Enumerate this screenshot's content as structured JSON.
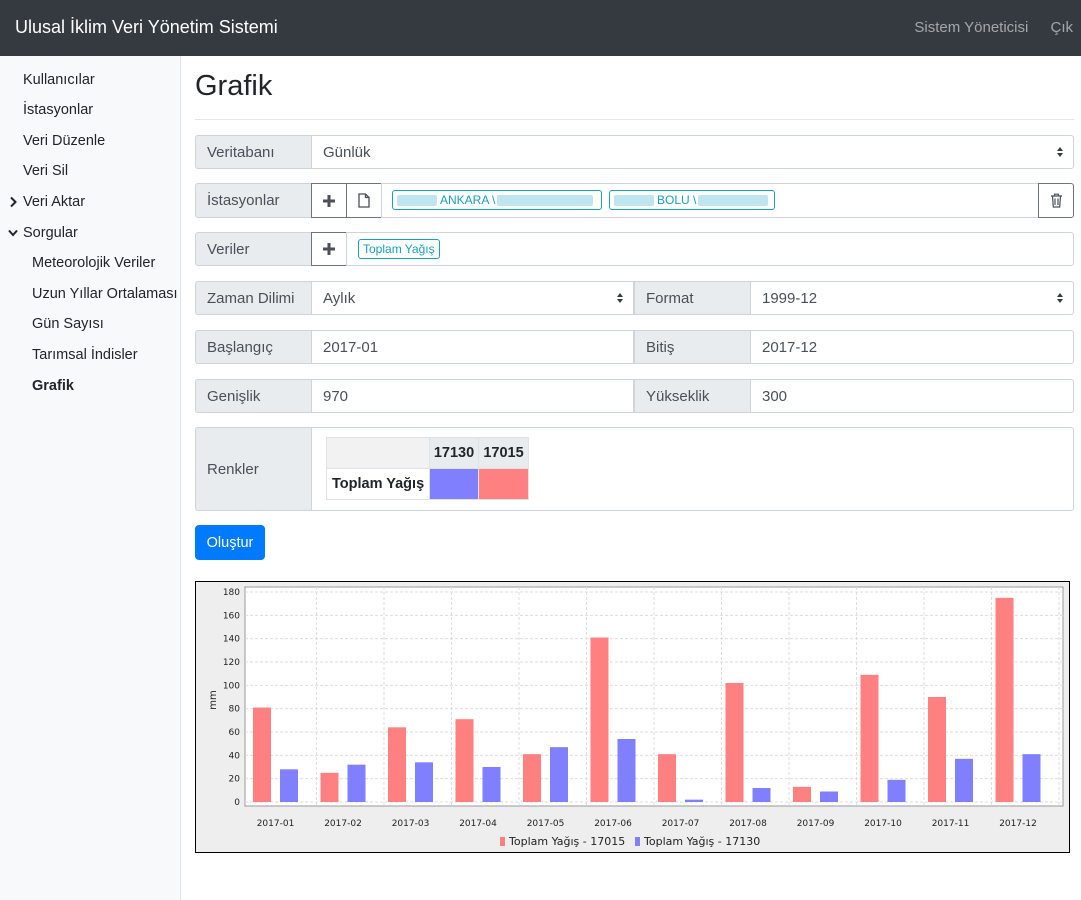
{
  "app": {
    "title": "Ulusal İklim Veri Yönetim Sistemi"
  },
  "topnav": {
    "user": "Sistem Yöneticisi",
    "logout": "Çık"
  },
  "sidebar": {
    "items": [
      "Kullanıcılar",
      "İstasyonlar",
      "Veri Düzenle",
      "Veri Sil"
    ],
    "veri_aktar": "Veri Aktar",
    "sorgular": "Sorgular",
    "sub_items": [
      "Meteorolojik Veriler",
      "Uzun Yıllar Ortalaması",
      "Gün Sayısı",
      "Tarımsal İndisler",
      "Grafik"
    ]
  },
  "page": {
    "title": "Grafik"
  },
  "form": {
    "veritabani": {
      "label": "Veritabanı",
      "value": "Günlük"
    },
    "istasyonlar": {
      "label": "İstasyonlar",
      "tags": [
        "ANKARA \\",
        "BOLU \\"
      ]
    },
    "veriler": {
      "label": "Veriler",
      "tags": [
        "Toplam Yağış"
      ]
    },
    "zaman_dilimi": {
      "label": "Zaman Dilimi",
      "value": "Aylık"
    },
    "format": {
      "label": "Format",
      "value": "1999-12"
    },
    "baslangic": {
      "label": "Başlangıç",
      "value": "2017-01"
    },
    "bitis": {
      "label": "Bitiş",
      "value": "2017-12"
    },
    "genislik": {
      "label": "Genişlik",
      "value": "970"
    },
    "yukseklik": {
      "label": "Yükseklik",
      "value": "300"
    },
    "renkler": {
      "label": "Renkler",
      "columns": [
        "17130",
        "17015"
      ],
      "row_label": "Toplam Yağış",
      "colors": [
        "#8080ff",
        "#ff8080"
      ]
    },
    "submit": "Oluştur"
  },
  "chart_data": {
    "type": "bar",
    "categories": [
      "2017-01",
      "2017-02",
      "2017-03",
      "2017-04",
      "2017-05",
      "2017-06",
      "2017-07",
      "2017-08",
      "2017-09",
      "2017-10",
      "2017-11",
      "2017-12"
    ],
    "series": [
      {
        "name": "Toplam Yağış - 17015",
        "color": "#ff8080",
        "values": [
          81,
          25,
          64,
          71,
          41,
          141,
          41,
          102,
          13,
          109,
          90,
          175
        ]
      },
      {
        "name": "Toplam Yağış - 17130",
        "color": "#8080ff",
        "values": [
          28,
          32,
          34,
          30,
          47,
          54,
          2,
          12,
          9,
          19,
          37,
          41
        ]
      }
    ],
    "ylabel": "mm",
    "ylim": [
      0,
      180
    ],
    "yticks": [
      0,
      20,
      40,
      60,
      80,
      100,
      120,
      140,
      160,
      180
    ],
    "grid": true,
    "legend_position": "bottom"
  }
}
